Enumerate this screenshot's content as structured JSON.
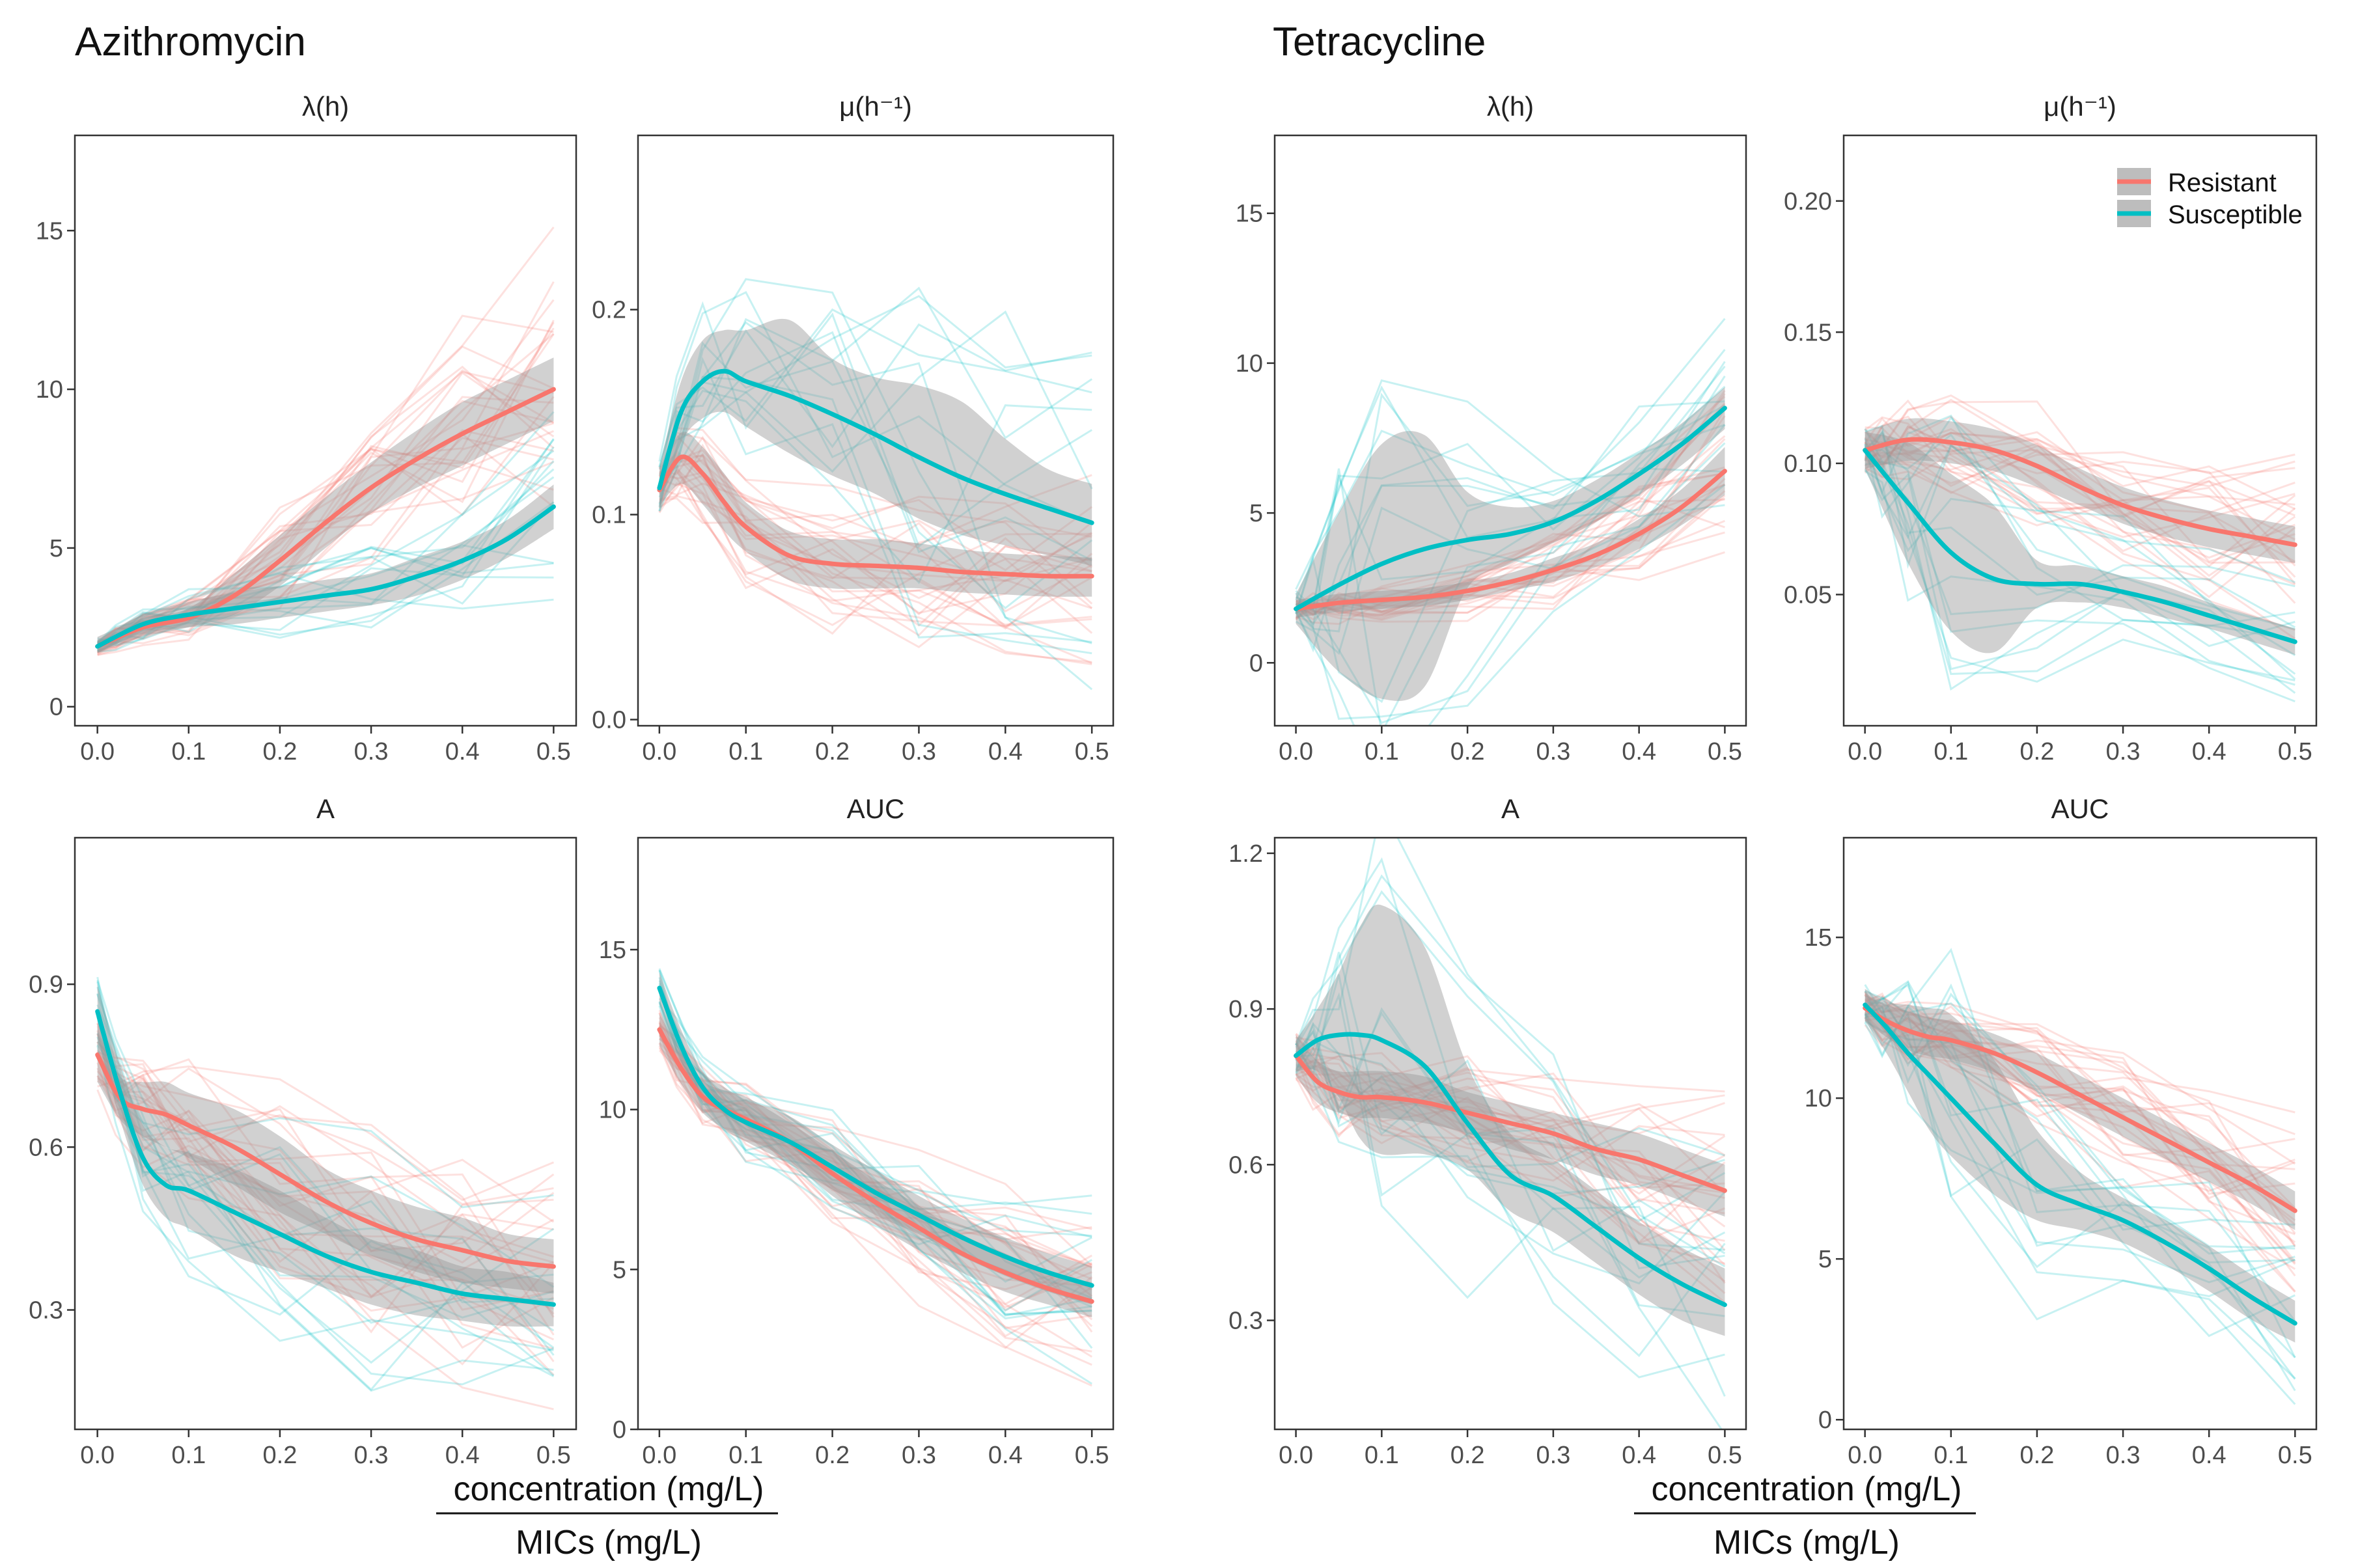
{
  "colors": {
    "resistant": "#F8766D",
    "susceptible": "#00BFC4",
    "ribbon": "#999999"
  },
  "legend": {
    "items": [
      {
        "label": "Resistant",
        "series": "resistant"
      },
      {
        "label": "Susceptible",
        "series": "susceptible"
      }
    ]
  },
  "axis_label": {
    "numerator": "concentration (mg/L)",
    "denominator": "MICs (mg/L)"
  },
  "chart_data": [
    {
      "type": "line",
      "group": "Azithromycin",
      "title": "λ(h)",
      "xlim": [
        0,
        0.5
      ],
      "ylim": [
        -0.6,
        18
      ],
      "xticks": [
        0.0,
        0.1,
        0.2,
        0.3,
        0.4,
        0.5
      ],
      "xtick_labels": [
        "0.0",
        "0.1",
        "0.2",
        "0.3",
        "0.4",
        "0.5"
      ],
      "yticks": [
        0,
        5,
        10,
        15
      ],
      "ytick_labels": [
        "0",
        "5",
        "10",
        "15"
      ],
      "x": [
        0,
        0.05,
        0.1,
        0.15,
        0.2,
        0.25,
        0.3,
        0.35,
        0.4,
        0.45,
        0.5
      ],
      "series": [
        {
          "name": "Resistant",
          "values": [
            1.9,
            2.5,
            2.8,
            3.5,
            4.6,
            5.8,
            6.9,
            7.8,
            8.6,
            9.3,
            10.0
          ],
          "lower": [
            1.7,
            2.2,
            2.5,
            2.9,
            3.8,
            5.0,
            6.1,
            6.9,
            7.6,
            8.3,
            9.0
          ],
          "upper": [
            2.2,
            2.8,
            3.1,
            4.2,
            5.4,
            6.6,
            7.7,
            8.7,
            9.6,
            10.3,
            11.0
          ]
        },
        {
          "name": "Susceptible",
          "values": [
            1.9,
            2.6,
            2.9,
            3.1,
            3.3,
            3.5,
            3.7,
            4.1,
            4.6,
            5.3,
            6.3
          ],
          "lower": [
            1.7,
            2.3,
            2.5,
            2.6,
            2.8,
            3.0,
            3.2,
            3.5,
            4.0,
            4.7,
            5.6
          ],
          "upper": [
            2.1,
            2.9,
            3.3,
            3.6,
            3.8,
            4.0,
            4.2,
            4.7,
            5.2,
            5.9,
            7.0
          ]
        }
      ]
    },
    {
      "type": "line",
      "group": "Azithromycin",
      "title": "μ(h⁻¹)",
      "xlim": [
        0,
        0.5
      ],
      "ylim": [
        -0.003,
        0.285
      ],
      "xticks": [
        0.0,
        0.1,
        0.2,
        0.3,
        0.4,
        0.5
      ],
      "xtick_labels": [
        "0.0",
        "0.1",
        "0.2",
        "0.3",
        "0.4",
        "0.5"
      ],
      "yticks": [
        0.0,
        0.1,
        0.2
      ],
      "ytick_labels": [
        "0.0",
        "0.1",
        "0.2"
      ],
      "x": [
        0,
        0.025,
        0.05,
        0.075,
        0.1,
        0.15,
        0.2,
        0.25,
        0.3,
        0.35,
        0.4,
        0.45,
        0.5
      ],
      "series": [
        {
          "name": "Resistant",
          "values": [
            0.112,
            0.128,
            0.12,
            0.106,
            0.094,
            0.08,
            0.076,
            0.075,
            0.074,
            0.072,
            0.071,
            0.07,
            0.07
          ],
          "lower": [
            0.104,
            0.115,
            0.105,
            0.092,
            0.082,
            0.068,
            0.064,
            0.064,
            0.064,
            0.062,
            0.061,
            0.06,
            0.06
          ],
          "upper": [
            0.121,
            0.14,
            0.133,
            0.12,
            0.106,
            0.092,
            0.088,
            0.088,
            0.086,
            0.083,
            0.081,
            0.08,
            0.079
          ]
        },
        {
          "name": "Susceptible",
          "values": [
            0.113,
            0.15,
            0.165,
            0.17,
            0.165,
            0.158,
            0.149,
            0.139,
            0.128,
            0.118,
            0.11,
            0.103,
            0.096
          ],
          "lower": [
            0.103,
            0.135,
            0.147,
            0.15,
            0.143,
            0.13,
            0.119,
            0.11,
            0.098,
            0.09,
            0.085,
            0.08,
            0.075
          ],
          "upper": [
            0.123,
            0.165,
            0.185,
            0.19,
            0.19,
            0.195,
            0.176,
            0.167,
            0.163,
            0.155,
            0.137,
            0.122,
            0.115
          ]
        }
      ]
    },
    {
      "type": "line",
      "group": "Azithromycin",
      "title": "A",
      "xlim": [
        0,
        0.5
      ],
      "ylim": [
        0.08,
        1.17
      ],
      "xticks": [
        0.0,
        0.1,
        0.2,
        0.3,
        0.4,
        0.5
      ],
      "xtick_labels": [
        "0.0",
        "0.1",
        "0.2",
        "0.3",
        "0.4",
        "0.5"
      ],
      "yticks": [
        0.3,
        0.6,
        0.9
      ],
      "ytick_labels": [
        "0.3",
        "0.6",
        "0.9"
      ],
      "x": [
        0,
        0.025,
        0.05,
        0.075,
        0.1,
        0.15,
        0.2,
        0.25,
        0.3,
        0.35,
        0.4,
        0.45,
        0.5
      ],
      "series": [
        {
          "name": "Resistant",
          "values": [
            0.77,
            0.69,
            0.67,
            0.66,
            0.64,
            0.6,
            0.55,
            0.5,
            0.46,
            0.43,
            0.41,
            0.39,
            0.38
          ],
          "lower": [
            0.72,
            0.65,
            0.62,
            0.6,
            0.58,
            0.53,
            0.48,
            0.44,
            0.4,
            0.37,
            0.35,
            0.34,
            0.33
          ],
          "upper": [
            0.82,
            0.73,
            0.72,
            0.72,
            0.7,
            0.67,
            0.62,
            0.56,
            0.52,
            0.49,
            0.47,
            0.44,
            0.43
          ]
        },
        {
          "name": "Susceptible",
          "values": [
            0.85,
            0.7,
            0.58,
            0.53,
            0.52,
            0.48,
            0.44,
            0.4,
            0.37,
            0.35,
            0.33,
            0.32,
            0.31
          ],
          "lower": [
            0.8,
            0.65,
            0.53,
            0.47,
            0.45,
            0.4,
            0.37,
            0.34,
            0.31,
            0.29,
            0.28,
            0.27,
            0.27
          ],
          "upper": [
            0.9,
            0.75,
            0.64,
            0.6,
            0.59,
            0.56,
            0.52,
            0.47,
            0.43,
            0.41,
            0.38,
            0.37,
            0.35
          ]
        }
      ]
    },
    {
      "type": "line",
      "group": "Azithromycin",
      "title": "AUC",
      "xlim": [
        0,
        0.5
      ],
      "ylim": [
        0,
        18.5
      ],
      "xticks": [
        0.0,
        0.1,
        0.2,
        0.3,
        0.4,
        0.5
      ],
      "xtick_labels": [
        "0.0",
        "0.1",
        "0.2",
        "0.3",
        "0.4",
        "0.5"
      ],
      "yticks": [
        0,
        5,
        10,
        15
      ],
      "ytick_labels": [
        "0",
        "5",
        "10",
        "15"
      ],
      "x": [
        0,
        0.025,
        0.05,
        0.075,
        0.1,
        0.15,
        0.2,
        0.25,
        0.3,
        0.35,
        0.4,
        0.45,
        0.5
      ],
      "series": [
        {
          "name": "Resistant",
          "values": [
            12.5,
            11.3,
            10.4,
            10.0,
            9.7,
            9.0,
            8.0,
            7.1,
            6.3,
            5.5,
            4.9,
            4.4,
            4.0
          ],
          "lower": [
            12.0,
            10.8,
            9.9,
            9.4,
            9.1,
            8.4,
            7.3,
            6.4,
            5.6,
            4.9,
            4.3,
            3.9,
            3.5
          ],
          "upper": [
            13.0,
            11.8,
            10.9,
            10.6,
            10.4,
            9.6,
            8.7,
            7.8,
            7.0,
            6.1,
            5.5,
            4.9,
            4.6
          ]
        },
        {
          "name": "Susceptible",
          "values": [
            13.8,
            12.0,
            10.7,
            10.0,
            9.6,
            9.0,
            8.2,
            7.4,
            6.7,
            6.0,
            5.4,
            4.9,
            4.5
          ],
          "lower": [
            13.3,
            11.5,
            10.2,
            9.4,
            9.0,
            8.3,
            7.5,
            6.7,
            6.1,
            5.4,
            4.8,
            4.3,
            3.9
          ],
          "upper": [
            14.3,
            12.5,
            11.2,
            10.7,
            10.3,
            9.8,
            8.9,
            8.1,
            7.3,
            6.6,
            6.0,
            5.5,
            5.1
          ]
        }
      ]
    },
    {
      "type": "line",
      "group": "Tetracycline",
      "title": "λ(h)",
      "xlim": [
        0,
        0.5
      ],
      "ylim": [
        -2.1,
        17.6
      ],
      "xticks": [
        0.0,
        0.1,
        0.2,
        0.3,
        0.4,
        0.5
      ],
      "xtick_labels": [
        "0.0",
        "0.1",
        "0.2",
        "0.3",
        "0.4",
        "0.5"
      ],
      "yticks": [
        0,
        5,
        10,
        15
      ],
      "ytick_labels": [
        "0",
        "5",
        "10",
        "15"
      ],
      "x": [
        0,
        0.05,
        0.1,
        0.15,
        0.2,
        0.25,
        0.3,
        0.35,
        0.4,
        0.45,
        0.5
      ],
      "series": [
        {
          "name": "Resistant",
          "values": [
            1.8,
            2.0,
            2.1,
            2.2,
            2.4,
            2.7,
            3.1,
            3.6,
            4.3,
            5.2,
            6.4
          ],
          "lower": [
            1.5,
            1.7,
            1.8,
            1.9,
            2.1,
            2.4,
            2.7,
            3.2,
            3.8,
            4.6,
            5.6
          ],
          "upper": [
            2.1,
            2.3,
            2.4,
            2.5,
            2.7,
            3.0,
            3.5,
            4.0,
            4.8,
            5.8,
            7.2
          ]
        },
        {
          "name": "Susceptible",
          "values": [
            1.8,
            2.6,
            3.3,
            3.8,
            4.1,
            4.3,
            4.7,
            5.4,
            6.3,
            7.3,
            8.5
          ],
          "lower": [
            1.3,
            -0.3,
            -1.2,
            -0.8,
            2.5,
            3.3,
            4.0,
            4.7,
            5.6,
            6.6,
            7.8
          ],
          "upper": [
            2.3,
            5.0,
            7.3,
            7.6,
            5.7,
            5.2,
            5.4,
            6.1,
            7.0,
            8.0,
            9.2
          ]
        }
      ]
    },
    {
      "type": "line",
      "group": "Tetracycline",
      "title": "μ(h⁻¹)",
      "xlim": [
        0,
        0.5
      ],
      "ylim": [
        0.0,
        0.225
      ],
      "xticks": [
        0.0,
        0.1,
        0.2,
        0.3,
        0.4,
        0.5
      ],
      "xtick_labels": [
        "0.0",
        "0.1",
        "0.2",
        "0.3",
        "0.4",
        "0.5"
      ],
      "yticks": [
        0.05,
        0.1,
        0.15,
        0.2
      ],
      "ytick_labels": [
        "0.05",
        "0.10",
        "0.15",
        "0.20"
      ],
      "x": [
        0,
        0.05,
        0.1,
        0.15,
        0.2,
        0.25,
        0.3,
        0.35,
        0.4,
        0.45,
        0.5
      ],
      "series": [
        {
          "name": "Resistant",
          "values": [
            0.105,
            0.109,
            0.108,
            0.105,
            0.099,
            0.091,
            0.084,
            0.079,
            0.075,
            0.072,
            0.069
          ],
          "lower": [
            0.098,
            0.101,
            0.1,
            0.097,
            0.091,
            0.084,
            0.077,
            0.072,
            0.068,
            0.065,
            0.062
          ],
          "upper": [
            0.112,
            0.117,
            0.116,
            0.113,
            0.107,
            0.098,
            0.091,
            0.086,
            0.082,
            0.079,
            0.076
          ]
        },
        {
          "name": "Susceptible",
          "values": [
            0.105,
            0.085,
            0.066,
            0.056,
            0.054,
            0.054,
            0.051,
            0.047,
            0.042,
            0.037,
            0.032
          ],
          "lower": [
            0.098,
            0.062,
            0.036,
            0.028,
            0.045,
            0.047,
            0.045,
            0.041,
            0.037,
            0.032,
            0.027
          ],
          "upper": [
            0.112,
            0.108,
            0.096,
            0.084,
            0.063,
            0.061,
            0.057,
            0.053,
            0.047,
            0.042,
            0.037
          ]
        }
      ]
    },
    {
      "type": "line",
      "group": "Tetracycline",
      "title": "A",
      "xlim": [
        0,
        0.5
      ],
      "ylim": [
        0.09,
        1.23
      ],
      "xticks": [
        0.0,
        0.1,
        0.2,
        0.3,
        0.4,
        0.5
      ],
      "xtick_labels": [
        "0.0",
        "0.1",
        "0.2",
        "0.3",
        "0.4",
        "0.5"
      ],
      "yticks": [
        0.3,
        0.6,
        0.9,
        1.2
      ],
      "ytick_labels": [
        "0.3",
        "0.6",
        "0.9",
        "1.2"
      ],
      "x": [
        0,
        0.025,
        0.05,
        0.075,
        0.1,
        0.15,
        0.2,
        0.25,
        0.3,
        0.35,
        0.4,
        0.45,
        0.5
      ],
      "series": [
        {
          "name": "Resistant",
          "values": [
            0.81,
            0.76,
            0.74,
            0.73,
            0.73,
            0.72,
            0.7,
            0.68,
            0.66,
            0.63,
            0.61,
            0.58,
            0.55
          ],
          "lower": [
            0.77,
            0.72,
            0.7,
            0.69,
            0.69,
            0.68,
            0.66,
            0.63,
            0.61,
            0.58,
            0.56,
            0.53,
            0.5
          ],
          "upper": [
            0.85,
            0.8,
            0.78,
            0.78,
            0.78,
            0.77,
            0.74,
            0.72,
            0.7,
            0.68,
            0.66,
            0.63,
            0.6
          ]
        },
        {
          "name": "Susceptible",
          "values": [
            0.81,
            0.84,
            0.85,
            0.85,
            0.84,
            0.79,
            0.68,
            0.58,
            0.54,
            0.48,
            0.42,
            0.37,
            0.33
          ],
          "lower": [
            0.78,
            0.78,
            0.73,
            0.65,
            0.62,
            0.62,
            0.59,
            0.51,
            0.47,
            0.41,
            0.35,
            0.3,
            0.27
          ],
          "upper": [
            0.84,
            0.9,
            0.97,
            1.06,
            1.1,
            1.02,
            0.79,
            0.66,
            0.61,
            0.55,
            0.49,
            0.44,
            0.4
          ]
        }
      ]
    },
    {
      "type": "line",
      "group": "Tetracycline",
      "title": "AUC",
      "xlim": [
        0,
        0.5
      ],
      "ylim": [
        -0.3,
        18.1
      ],
      "xticks": [
        0.0,
        0.1,
        0.2,
        0.3,
        0.4,
        0.5
      ],
      "xtick_labels": [
        "0.0",
        "0.1",
        "0.2",
        "0.3",
        "0.4",
        "0.5"
      ],
      "yticks": [
        0,
        5,
        10,
        15
      ],
      "ytick_labels": [
        "0",
        "5",
        "10",
        "15"
      ],
      "x": [
        0,
        0.025,
        0.05,
        0.075,
        0.1,
        0.15,
        0.2,
        0.25,
        0.3,
        0.35,
        0.4,
        0.45,
        0.5
      ],
      "series": [
        {
          "name": "Resistant",
          "values": [
            12.8,
            12.4,
            12.1,
            11.9,
            11.8,
            11.4,
            10.8,
            10.1,
            9.4,
            8.7,
            8.0,
            7.3,
            6.5
          ],
          "lower": [
            12.4,
            11.9,
            11.5,
            11.3,
            11.2,
            10.8,
            10.2,
            9.5,
            8.8,
            8.1,
            7.4,
            6.7,
            5.9
          ],
          "upper": [
            13.2,
            12.9,
            12.7,
            12.5,
            12.4,
            12.0,
            11.4,
            10.7,
            10.0,
            9.3,
            8.6,
            7.9,
            7.1
          ]
        },
        {
          "name": "Susceptible",
          "values": [
            12.9,
            12.2,
            11.4,
            10.7,
            10.0,
            8.6,
            7.3,
            6.7,
            6.2,
            5.5,
            4.7,
            3.8,
            3.0
          ],
          "lower": [
            12.4,
            11.4,
            10.2,
            9.0,
            8.2,
            7.0,
            6.2,
            5.9,
            5.5,
            4.8,
            4.0,
            3.1,
            2.4
          ],
          "upper": [
            13.4,
            13.0,
            12.9,
            12.8,
            12.6,
            11.2,
            9.0,
            7.7,
            6.9,
            6.2,
            5.4,
            4.5,
            3.7
          ]
        }
      ]
    }
  ]
}
